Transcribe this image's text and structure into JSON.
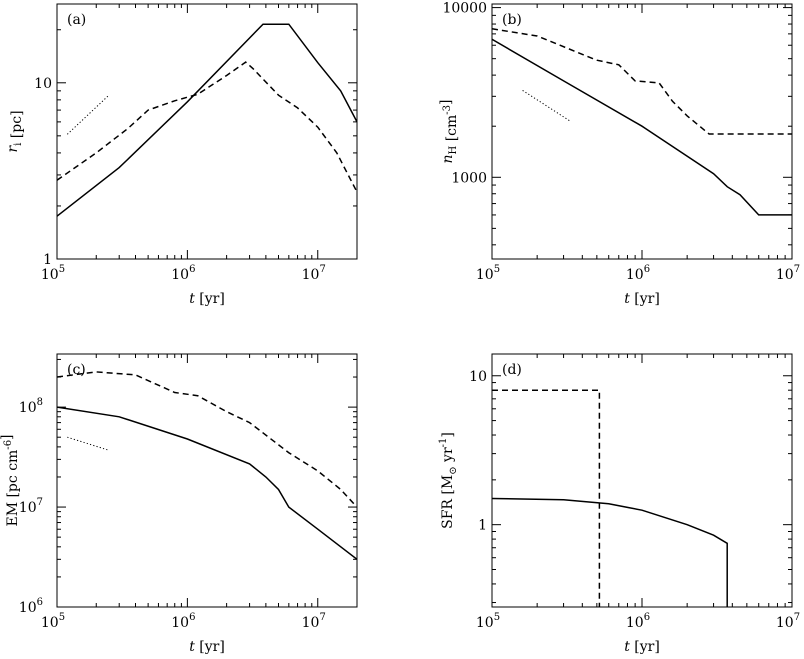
{
  "chart_data": [
    {
      "panel": "(a)",
      "type": "line",
      "xlabel": "t [yr]",
      "ylabel": "r_i [pc]",
      "xscale": "log",
      "yscale": "log",
      "xlim": [
        100000,
        20000000
      ],
      "ylim": [
        1,
        28
      ],
      "xticks": [
        {
          "base": "10",
          "exp": "5",
          "v": 100000
        },
        {
          "base": "10",
          "exp": "6",
          "v": 1000000
        },
        {
          "base": "10",
          "exp": "7",
          "v": 10000000
        }
      ],
      "yticks": [
        {
          "label": "1",
          "v": 1
        },
        {
          "label": "10",
          "v": 10
        }
      ],
      "series": [
        {
          "style": "solid",
          "x": [
            100000,
            300000,
            1000000,
            3800000,
            6000000,
            10000000,
            15000000,
            20000000
          ],
          "y": [
            1.75,
            3.3,
            7.8,
            21.5,
            21.5,
            13,
            9,
            6
          ]
        },
        {
          "style": "dashed",
          "x": [
            100000,
            200000,
            350000,
            500000,
            800000,
            1200000,
            2000000,
            2800000,
            3200000,
            5000000,
            7000000,
            10000000,
            14000000,
            20000000
          ],
          "y": [
            2.8,
            4,
            5.5,
            7,
            7.9,
            8.6,
            11,
            13.1,
            12,
            8.5,
            7.2,
            5.6,
            4,
            2.4
          ]
        },
        {
          "style": "dotted",
          "x": [
            120000,
            250000
          ],
          "y": [
            5.1,
            8.5
          ]
        }
      ]
    },
    {
      "panel": "(b)",
      "type": "line",
      "xlabel": "t [yr]",
      "ylabel": "n_H [cm^-3]",
      "xscale": "log",
      "yscale": "log",
      "xlim": [
        100000,
        10000000
      ],
      "ylim": [
        330,
        10500
      ],
      "xticks": [
        {
          "base": "10",
          "exp": "5",
          "v": 100000
        },
        {
          "base": "10",
          "exp": "6",
          "v": 1000000
        },
        {
          "base": "10",
          "exp": "7",
          "v": 10000000
        }
      ],
      "yticks": [
        {
          "label": "1000",
          "v": 1000
        },
        {
          "label": "10000",
          "v": 10000
        }
      ],
      "series": [
        {
          "style": "solid",
          "x": [
            100000,
            300000,
            1000000,
            3000000,
            3700000,
            4500000,
            6000000,
            10000000
          ],
          "y": [
            6500,
            3700,
            2000,
            1050,
            880,
            790,
            600,
            600
          ]
        },
        {
          "style": "dashed",
          "x": [
            100000,
            200000,
            500000,
            700000,
            900000,
            1300000,
            1600000,
            2000000,
            2800000,
            10000000
          ],
          "y": [
            7500,
            6800,
            4900,
            4600,
            3700,
            3600,
            2800,
            2300,
            1800,
            1800
          ]
        },
        {
          "style": "dotted",
          "x": [
            160000,
            330000
          ],
          "y": [
            3250,
            2150
          ]
        }
      ]
    },
    {
      "panel": "(c)",
      "type": "line",
      "xlabel": "t [yr]",
      "ylabel": "EM [pc cm^-6]",
      "xscale": "log",
      "yscale": "log",
      "xlim": [
        100000,
        20000000
      ],
      "ylim": [
        1000000,
        340000000
      ],
      "xticks": [
        {
          "base": "10",
          "exp": "5",
          "v": 100000
        },
        {
          "base": "10",
          "exp": "6",
          "v": 1000000
        },
        {
          "base": "10",
          "exp": "7",
          "v": 10000000
        }
      ],
      "yticks": [
        {
          "base": "10",
          "exp": "6",
          "v": 1000000
        },
        {
          "base": "10",
          "exp": "7",
          "v": 10000000
        },
        {
          "base": "10",
          "exp": "8",
          "v": 100000000
        }
      ],
      "series": [
        {
          "style": "solid",
          "x": [
            100000,
            300000,
            1000000,
            3000000,
            4000000,
            5000000,
            6000000,
            10000000,
            20000000
          ],
          "y": [
            100000000,
            80000000,
            48000000,
            27000000,
            20000000,
            15000000,
            10000000,
            6000000,
            3000000
          ]
        },
        {
          "style": "dashed",
          "x": [
            100000,
            200000,
            400000,
            800000,
            1200000,
            2000000,
            3000000,
            6000000,
            10000000,
            15000000,
            20000000
          ],
          "y": [
            200000000,
            225000000,
            210000000,
            140000000,
            130000000,
            90000000,
            70000000,
            35000000,
            23000000,
            15000000,
            10000000
          ]
        },
        {
          "style": "dotted",
          "x": [
            120000,
            250000
          ],
          "y": [
            50000000,
            37000000
          ]
        }
      ]
    },
    {
      "panel": "(d)",
      "type": "line",
      "xlabel": "t [yr]",
      "ylabel": "SFR [M_⊙ yr^-1]",
      "xscale": "log",
      "yscale": "log",
      "xlim": [
        100000,
        10000000
      ],
      "ylim": [
        0.28,
        14
      ],
      "xticks": [
        {
          "base": "10",
          "exp": "5",
          "v": 100000
        },
        {
          "base": "10",
          "exp": "6",
          "v": 1000000
        },
        {
          "base": "10",
          "exp": "7",
          "v": 10000000
        }
      ],
      "yticks": [
        {
          "label": "1",
          "v": 1
        },
        {
          "label": "10",
          "v": 10
        }
      ],
      "series": [
        {
          "style": "solid",
          "x": [
            100000,
            300000,
            600000,
            1000000,
            2000000,
            3000000,
            3700000,
            3700000
          ],
          "y": [
            1.5,
            1.47,
            1.38,
            1.25,
            1.0,
            0.85,
            0.75,
            0.28
          ]
        },
        {
          "style": "dashed",
          "x": [
            100000,
            520000,
            520000
          ],
          "y": [
            8,
            8,
            0.28
          ]
        }
      ]
    }
  ]
}
